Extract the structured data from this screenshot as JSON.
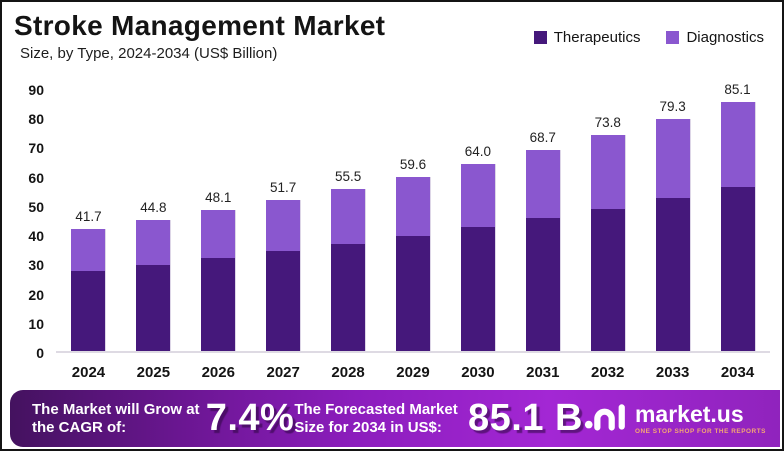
{
  "page": {
    "title": "Stroke Management Market",
    "subtitle": "Size, by Type, 2024-2034 (US$ Billion)"
  },
  "chart_data": {
    "type": "bar",
    "stacked": true,
    "title": "Stroke Management Market",
    "subtitle": "Size, by Type, 2024-2034 (US$ Billion)",
    "unit": "US$ Billion",
    "categories": [
      "2024",
      "2025",
      "2026",
      "2027",
      "2028",
      "2029",
      "2030",
      "2031",
      "2032",
      "2033",
      "2034"
    ],
    "series": [
      {
        "name": "Therapeutics",
        "color": "#45187b",
        "values": [
          27.5,
          29.6,
          31.8,
          34.1,
          36.7,
          39.4,
          42.3,
          45.4,
          48.7,
          52.4,
          56.2
        ]
      },
      {
        "name": "Diagnostics",
        "color": "#8a57cf",
        "values": [
          14.2,
          15.2,
          16.3,
          17.6,
          18.8,
          20.2,
          21.7,
          23.3,
          25.1,
          26.9,
          28.9
        ]
      }
    ],
    "totals": [
      "41.7",
      "44.8",
      "48.1",
      "51.7",
      "55.5",
      "59.6",
      "64.0",
      "68.7",
      "73.8",
      "79.3",
      "85.1"
    ],
    "ylim": [
      0,
      90
    ],
    "y_ticks": [
      0,
      10,
      20,
      30,
      40,
      50,
      60,
      70,
      80,
      90
    ],
    "grid": false,
    "legend_position": "top-right",
    "xlabel": "",
    "ylabel": "US$ Billion"
  },
  "banner": {
    "cagr_label": "The Market will Grow at the CAGR of:",
    "cagr_value": "7.4%",
    "forecast_label": "The Forecasted Market Size for 2034 in US$:",
    "forecast_value": "85.1 B",
    "brand": "market.us",
    "brand_tagline": "ONE STOP SHOP FOR THE REPORTS"
  }
}
